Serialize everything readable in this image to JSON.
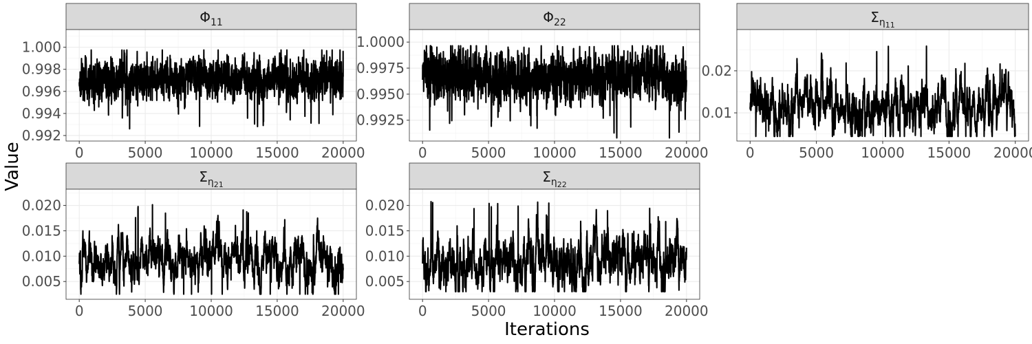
{
  "figure": {
    "xlabel": "Iterations",
    "ylabel": "Value"
  },
  "chart_data": [
    {
      "type": "line",
      "panel": "Phi_11",
      "strip_label": {
        "base": "Φ",
        "sub": "11"
      },
      "xlim": [
        -1000,
        21000
      ],
      "ylim": [
        0.9915,
        1.0016
      ],
      "x_ticks": [
        0,
        5000,
        10000,
        15000,
        20000
      ],
      "x_tick_labels": [
        "0",
        "5000",
        "10000",
        "15000",
        "20000"
      ],
      "y_ticks": [
        0.992,
        0.994,
        0.996,
        0.998,
        1.0
      ],
      "y_tick_labels": [
        "0.992",
        "0.994",
        "0.996",
        "0.998",
        "1.000"
      ],
      "series": [
        {
          "x_range": [
            0,
            20000
          ],
          "mean": 0.99705,
          "sd": 0.0009,
          "min": 0.9917,
          "max": 0.99975,
          "rho": 0.45,
          "seed": 11
        }
      ]
    },
    {
      "type": "line",
      "panel": "Phi_22",
      "strip_label": {
        "base": "Φ",
        "sub": "22"
      },
      "xlim": [
        -1000,
        21000
      ],
      "ylim": [
        0.9905,
        1.0012
      ],
      "x_ticks": [
        0,
        5000,
        10000,
        15000,
        20000
      ],
      "x_tick_labels": [
        "0",
        "5000",
        "10000",
        "15000",
        "20000"
      ],
      "y_ticks": [
        0.9925,
        0.995,
        0.9975,
        1.0
      ],
      "y_tick_labels": [
        "0.9925",
        "0.9950",
        "0.9975",
        "1.0000"
      ],
      "series": [
        {
          "x_range": [
            0,
            20000
          ],
          "mean": 0.99665,
          "sd": 0.0012,
          "min": 0.9908,
          "max": 0.99965,
          "rho": 0.45,
          "seed": 22
        }
      ]
    },
    {
      "type": "line",
      "panel": "Sigma_eta_11",
      "strip_label": {
        "base": "Σ",
        "sub": "η",
        "subsub": "11"
      },
      "xlim": [
        -1000,
        21000
      ],
      "ylim": [
        0.0033,
        0.0298
      ],
      "x_ticks": [
        0,
        5000,
        10000,
        15000,
        20000
      ],
      "x_tick_labels": [
        "0",
        "5000",
        "10000",
        "15000",
        "20000"
      ],
      "y_ticks": [
        0.01,
        0.02
      ],
      "y_tick_labels": [
        "0.01",
        "0.02"
      ],
      "series": [
        {
          "x_range": [
            0,
            20000
          ],
          "mean": 0.0118,
          "sd": 0.0032,
          "min": 0.0044,
          "max": 0.0285,
          "rho": 0.85,
          "seed": 33
        }
      ]
    },
    {
      "type": "line",
      "panel": "Sigma_eta_21",
      "strip_label": {
        "base": "Σ",
        "sub": "η",
        "subsub": "21"
      },
      "xlim": [
        -1000,
        21000
      ],
      "ylim": [
        0.0015,
        0.0232
      ],
      "x_ticks": [
        0,
        5000,
        10000,
        15000,
        20000
      ],
      "x_tick_labels": [
        "0",
        "5000",
        "10000",
        "15000",
        "20000"
      ],
      "y_ticks": [
        0.005,
        0.01,
        0.015,
        0.02
      ],
      "y_tick_labels": [
        "0.005",
        "0.010",
        "0.015",
        "0.020"
      ],
      "series": [
        {
          "x_range": [
            0,
            20000
          ],
          "mean": 0.0093,
          "sd": 0.0025,
          "min": 0.0025,
          "max": 0.0217,
          "rho": 0.85,
          "seed": 44
        }
      ]
    },
    {
      "type": "line",
      "panel": "Sigma_eta_22",
      "strip_label": {
        "base": "Σ",
        "sub": "η",
        "subsub": "22"
      },
      "xlim": [
        -1000,
        21000
      ],
      "ylim": [
        0.0015,
        0.0232
      ],
      "x_ticks": [
        0,
        5000,
        10000,
        15000,
        20000
      ],
      "x_tick_labels": [
        "0",
        "5000",
        "10000",
        "15000",
        "20000"
      ],
      "y_ticks": [
        0.005,
        0.01,
        0.015,
        0.02
      ],
      "y_tick_labels": [
        "0.005",
        "0.010",
        "0.015",
        "0.020"
      ],
      "series": [
        {
          "x_range": [
            0,
            20000
          ],
          "mean": 0.0088,
          "sd": 0.0028,
          "min": 0.003,
          "max": 0.0222,
          "rho": 0.85,
          "seed": 55
        }
      ]
    }
  ]
}
